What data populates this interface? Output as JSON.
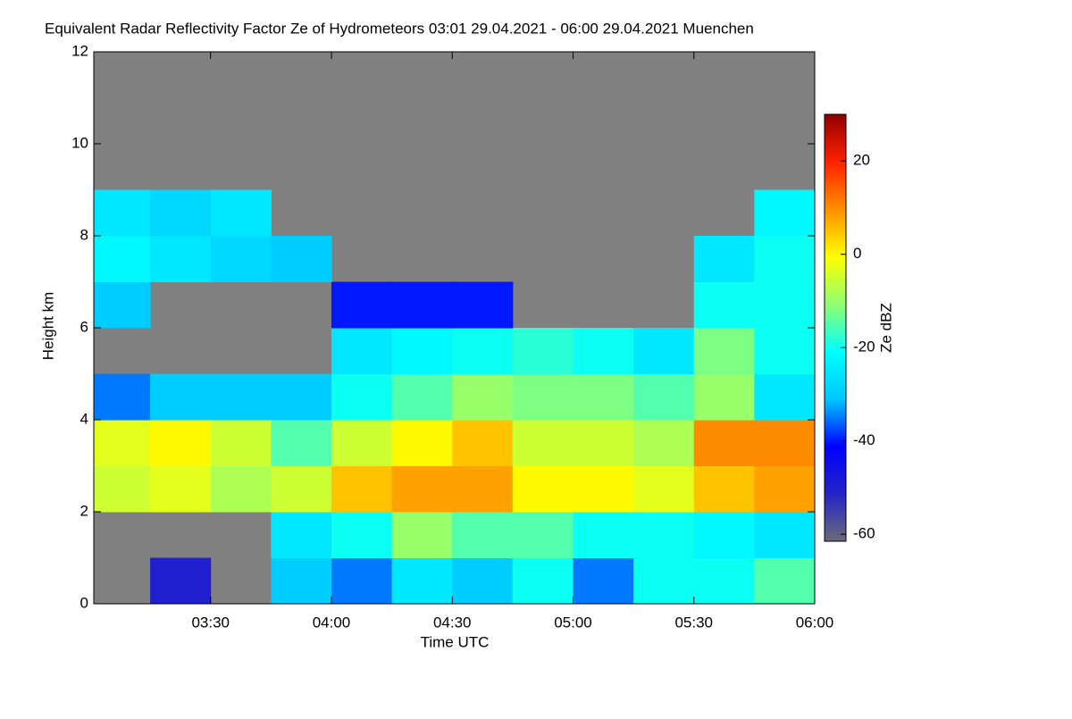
{
  "chart_data": {
    "type": "heatmap",
    "title": "Equivalent Radar Reflectivity Factor Ze of Hydrometeors   03:01 29.04.2021 - 06:00 29.04.2021 Muenchen",
    "x_label": "Time UTC",
    "y_label": "Height km",
    "colorbar_label": "Ze dBZ",
    "x": [
      3.125,
      3.375,
      3.625,
      3.875,
      4.125,
      4.375,
      4.625,
      4.875,
      5.125,
      5.375,
      5.625,
      5.875
    ],
    "y": [
      0.5,
      1.5,
      2.5,
      3.5,
      4.5,
      5.5,
      6.5,
      7.5,
      8.5,
      9.5,
      10.5,
      11.5
    ],
    "z": [
      [
        null,
        -50,
        null,
        -30,
        -35,
        -25,
        -30,
        -20,
        -35,
        -20,
        -20,
        -15
      ],
      [
        null,
        null,
        null,
        -25,
        -20,
        -10,
        -15,
        -15,
        -20,
        -20,
        -22,
        -25
      ],
      [
        -5,
        -3,
        -8,
        -5,
        5,
        8,
        8,
        0,
        0,
        -3,
        5,
        8
      ],
      [
        -3,
        0,
        -5,
        -15,
        -5,
        0,
        5,
        -5,
        -5,
        -8,
        10,
        10
      ],
      [
        -35,
        -30,
        -30,
        -30,
        -20,
        -15,
        -10,
        -12,
        -12,
        -15,
        -10,
        -25
      ],
      [
        null,
        null,
        null,
        null,
        -25,
        -22,
        -20,
        -18,
        -20,
        -25,
        -12,
        -20
      ],
      [
        -30,
        null,
        null,
        null,
        -40,
        -40,
        -40,
        null,
        null,
        null,
        -20,
        -20
      ],
      [
        -22,
        -25,
        -28,
        -30,
        null,
        null,
        null,
        null,
        null,
        null,
        -25,
        -20
      ],
      [
        -25,
        -28,
        -25,
        null,
        null,
        null,
        null,
        null,
        null,
        null,
        null,
        -22
      ],
      [
        null,
        null,
        null,
        null,
        null,
        null,
        null,
        null,
        null,
        null,
        null,
        null
      ],
      [
        null,
        null,
        null,
        null,
        null,
        null,
        null,
        null,
        null,
        null,
        null,
        null
      ],
      [
        null,
        null,
        null,
        null,
        null,
        null,
        null,
        null,
        null,
        null,
        null,
        null
      ]
    ],
    "xlim": [
      3.0167,
      6.0
    ],
    "xticks": [
      {
        "value": 3.5,
        "label": "03:30"
      },
      {
        "value": 4.0,
        "label": "04:00"
      },
      {
        "value": 4.5,
        "label": "04:30"
      },
      {
        "value": 5.0,
        "label": "05:00"
      },
      {
        "value": 5.5,
        "label": "05:30"
      },
      {
        "value": 6.0,
        "label": "06:00"
      }
    ],
    "ylim": [
      0,
      12
    ],
    "yticks": [
      0,
      2,
      4,
      6,
      8,
      10,
      12
    ],
    "zlim": [
      -61.5,
      30
    ],
    "zticks": [
      -60,
      -40,
      -20,
      0,
      20
    ],
    "colormap": [
      "#6a6a78",
      "#2424c8",
      "#0000ff",
      "#00c8ff",
      "#00ffff",
      "#90ff70",
      "#ffff00",
      "#ff9000",
      "#ff2000",
      "#900000"
    ],
    "nodata_color": "#808080"
  }
}
